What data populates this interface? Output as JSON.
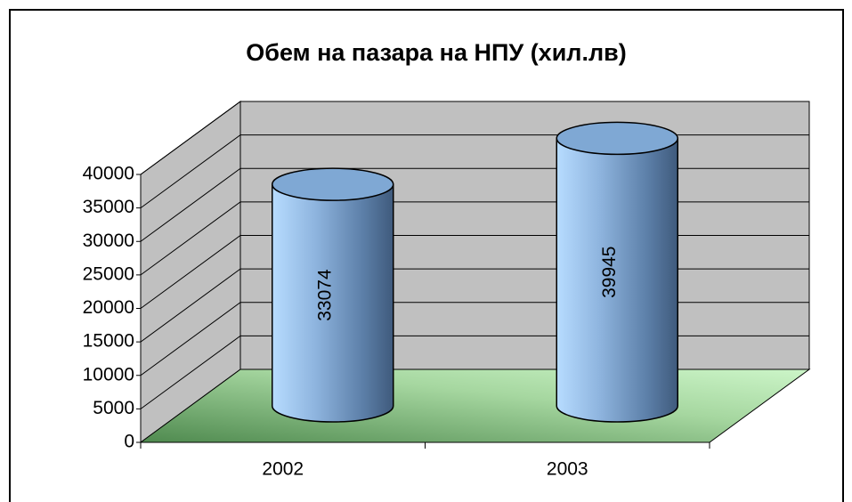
{
  "chart_data": {
    "type": "cylinder",
    "title": "Обем на пазара на НПУ (хил.лв)",
    "categories": [
      "2002",
      "2003"
    ],
    "values": [
      33074,
      39945
    ],
    "color": "#7fa8d4",
    "ylim": [
      0,
      40000
    ],
    "yticks": [
      0,
      5000,
      10000,
      15000,
      20000,
      25000,
      30000,
      35000,
      40000
    ],
    "grid": true
  }
}
